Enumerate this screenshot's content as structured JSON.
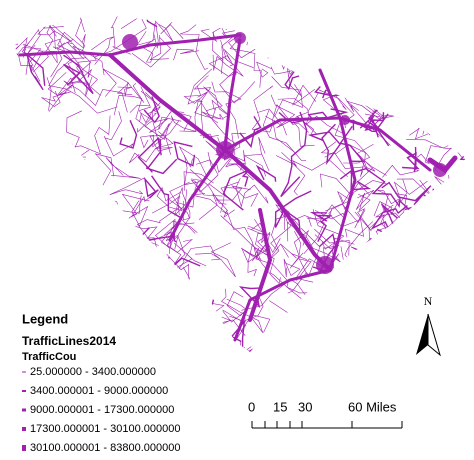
{
  "legend": {
    "title": "Legend",
    "layer": "TrafficLines2014",
    "field": "TrafficCou",
    "classes": [
      "25.000000 - 3400.000000",
      "3400.000001 - 9000.000000",
      "9000.000001 - 17300.000000",
      "17300.000001 - 30100.000000",
      "30100.000001 - 83800.000000"
    ]
  },
  "scale_bar": {
    "labels": [
      "0",
      "15",
      "30",
      "60 Miles"
    ]
  },
  "north_arrow": {
    "label": "N"
  }
}
